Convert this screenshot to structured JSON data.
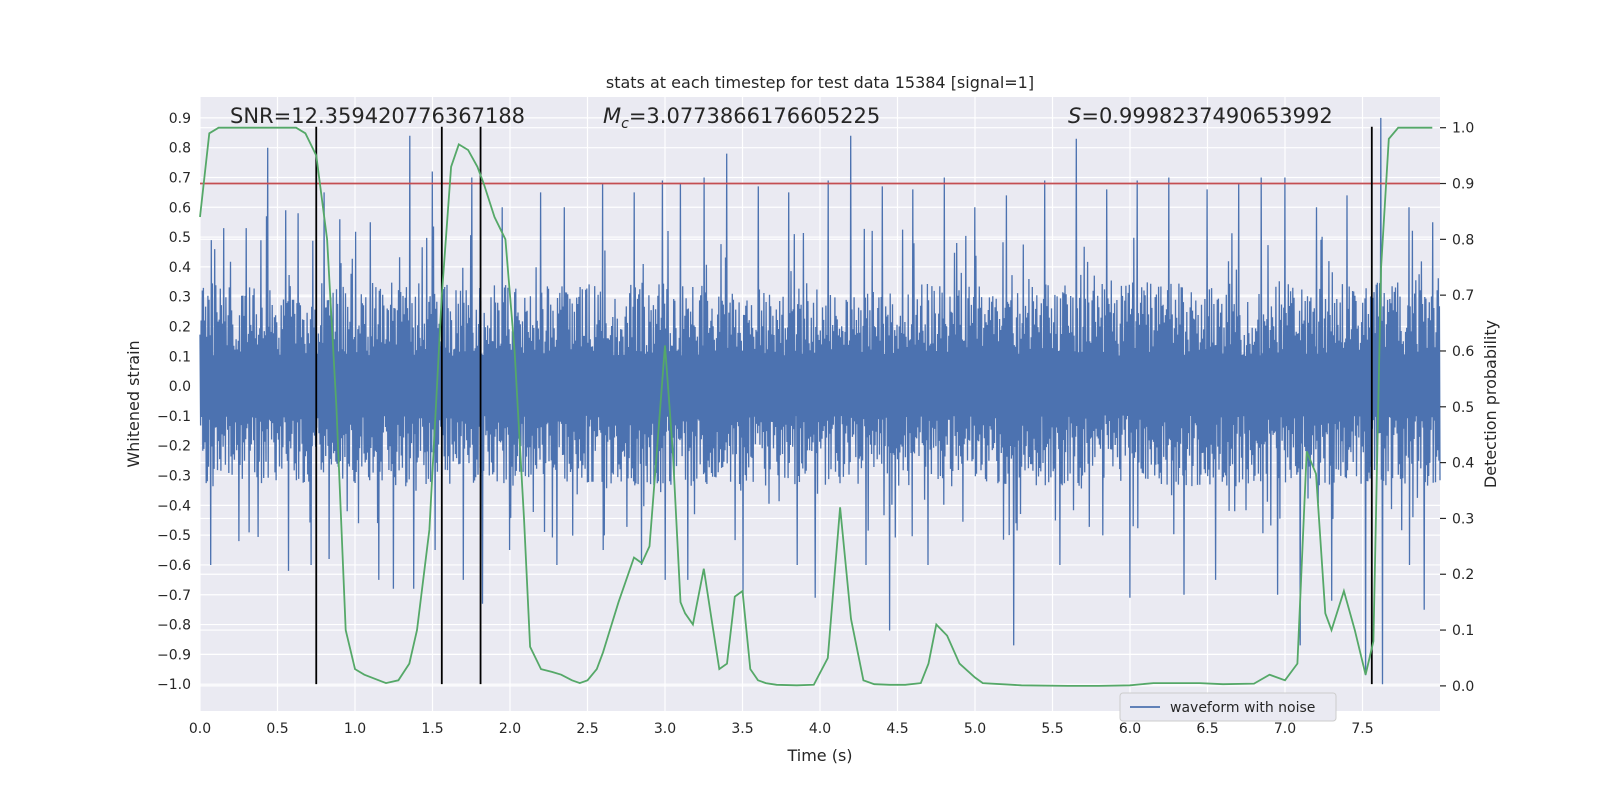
{
  "chart_data": {
    "type": "line",
    "title": "stats at each timestep for test data 15384 [signal=1]",
    "xlabel": "Time (s)",
    "ylabel": "Whitened strain",
    "y2label": "Detection probability",
    "xlim": [
      0.0,
      8.0
    ],
    "ylim": [
      -1.09,
      0.97
    ],
    "y2lim": [
      -0.045,
      1.055
    ],
    "xticks": [
      "0.0",
      "0.5",
      "1.0",
      "1.5",
      "2.0",
      "2.5",
      "3.0",
      "3.5",
      "4.0",
      "4.5",
      "5.0",
      "5.5",
      "6.0",
      "6.5",
      "7.0",
      "7.5"
    ],
    "yticks": [
      "0.9",
      "0.8",
      "0.7",
      "0.6",
      "0.5",
      "0.4",
      "0.3",
      "0.2",
      "0.1",
      "0.0",
      "-0.1",
      "-0.2",
      "-0.3",
      "-0.4",
      "-0.5",
      "-0.6",
      "-0.7",
      "-0.8",
      "-0.9",
      "-1.0"
    ],
    "y2ticks": [
      "1.0",
      "0.9",
      "0.8",
      "0.7",
      "0.6",
      "0.5",
      "0.4",
      "0.3",
      "0.2",
      "0.1",
      "0.0"
    ],
    "annotations": {
      "snr": "SNR=12.359420776367188",
      "mc_symbol": "M",
      "mc_sub": "c",
      "mc_value": "=3.0773866176605225",
      "s_symbol": "S",
      "s_value": "=0.9998237490653992"
    },
    "legend": {
      "label": "waveform with noise",
      "location": "lower-right"
    },
    "threshold": {
      "value": 0.9,
      "axis": "y2",
      "color": "#c44e52"
    },
    "vlines_x": [
      0.75,
      1.56,
      1.81,
      7.56
    ],
    "waveform": {
      "name": "waveform with noise",
      "color": "#4c72b0",
      "x_range": [
        0.0,
        8.0
      ],
      "base_envelope": [
        -0.28,
        0.29
      ],
      "peaks": [
        {
          "x": 0.07,
          "y": 0.49
        },
        {
          "x": 0.15,
          "y": 0.53
        },
        {
          "x": 0.3,
          "y": 0.53
        },
        {
          "x": 0.43,
          "y": 0.57
        },
        {
          "x": 0.44,
          "y": 0.8
        },
        {
          "x": 0.55,
          "y": 0.59
        },
        {
          "x": 0.63,
          "y": 0.58
        },
        {
          "x": 0.8,
          "y": 0.65
        },
        {
          "x": 0.9,
          "y": 0.56
        },
        {
          "x": 1.1,
          "y": 0.55
        },
        {
          "x": 1.35,
          "y": 0.84
        },
        {
          "x": 1.5,
          "y": 0.72
        },
        {
          "x": 1.75,
          "y": 0.7
        },
        {
          "x": 1.95,
          "y": 0.6
        },
        {
          "x": 2.2,
          "y": 0.65
        },
        {
          "x": 2.35,
          "y": 0.6
        },
        {
          "x": 2.6,
          "y": 0.68
        },
        {
          "x": 2.8,
          "y": 0.65
        },
        {
          "x": 2.98,
          "y": 0.69
        },
        {
          "x": 3.1,
          "y": 0.68
        },
        {
          "x": 3.25,
          "y": 0.7
        },
        {
          "x": 3.4,
          "y": 0.78
        },
        {
          "x": 3.6,
          "y": 0.67
        },
        {
          "x": 3.8,
          "y": 0.65
        },
        {
          "x": 4.05,
          "y": 0.69
        },
        {
          "x": 4.2,
          "y": 0.84
        },
        {
          "x": 4.4,
          "y": 0.67
        },
        {
          "x": 4.6,
          "y": 0.66
        },
        {
          "x": 4.8,
          "y": 0.7
        },
        {
          "x": 5.0,
          "y": 0.6
        },
        {
          "x": 5.2,
          "y": 0.64
        },
        {
          "x": 5.45,
          "y": 0.69
        },
        {
          "x": 5.65,
          "y": 0.83
        },
        {
          "x": 5.85,
          "y": 0.66
        },
        {
          "x": 6.05,
          "y": 0.69
        },
        {
          "x": 6.25,
          "y": 0.7
        },
        {
          "x": 6.5,
          "y": 0.66
        },
        {
          "x": 6.7,
          "y": 0.68
        },
        {
          "x": 6.85,
          "y": 0.7
        },
        {
          "x": 7.0,
          "y": 0.7
        },
        {
          "x": 7.2,
          "y": 0.6
        },
        {
          "x": 7.4,
          "y": 0.64
        },
        {
          "x": 7.62,
          "y": 0.9
        },
        {
          "x": 7.8,
          "y": 0.6
        },
        {
          "x": 7.95,
          "y": 0.55
        }
      ],
      "troughs": [
        {
          "x": 0.07,
          "y": -0.6
        },
        {
          "x": 0.25,
          "y": -0.52
        },
        {
          "x": 0.57,
          "y": -0.62
        },
        {
          "x": 0.72,
          "y": -0.6
        },
        {
          "x": 0.83,
          "y": -0.58
        },
        {
          "x": 1.15,
          "y": -0.65
        },
        {
          "x": 1.25,
          "y": -0.68
        },
        {
          "x": 1.38,
          "y": -0.68
        },
        {
          "x": 1.52,
          "y": -0.55
        },
        {
          "x": 1.7,
          "y": -0.65
        },
        {
          "x": 1.82,
          "y": -0.73
        },
        {
          "x": 2.0,
          "y": -0.55
        },
        {
          "x": 2.3,
          "y": -0.6
        },
        {
          "x": 2.6,
          "y": -0.55
        },
        {
          "x": 2.85,
          "y": -0.6
        },
        {
          "x": 3.0,
          "y": -0.65
        },
        {
          "x": 3.15,
          "y": -0.65
        },
        {
          "x": 3.5,
          "y": -0.7
        },
        {
          "x": 3.85,
          "y": -0.6
        },
        {
          "x": 3.97,
          "y": -0.71
        },
        {
          "x": 4.3,
          "y": -0.6
        },
        {
          "x": 4.45,
          "y": -0.82
        },
        {
          "x": 4.7,
          "y": -0.6
        },
        {
          "x": 5.25,
          "y": -0.87
        },
        {
          "x": 5.55,
          "y": -0.6
        },
        {
          "x": 6.0,
          "y": -0.71
        },
        {
          "x": 6.35,
          "y": -0.7
        },
        {
          "x": 6.55,
          "y": -0.65
        },
        {
          "x": 6.95,
          "y": -0.7
        },
        {
          "x": 7.1,
          "y": -0.87
        },
        {
          "x": 7.3,
          "y": -0.72
        },
        {
          "x": 7.52,
          "y": -0.97
        },
        {
          "x": 7.63,
          "y": -1.0
        },
        {
          "x": 7.8,
          "y": -0.6
        },
        {
          "x": 7.9,
          "y": -0.75
        }
      ]
    },
    "probability": {
      "name": "Detection probability",
      "color": "#55a868",
      "axis": "y2",
      "x": [
        0.0,
        0.06,
        0.12,
        0.25,
        0.5,
        0.62,
        0.68,
        0.75,
        0.82,
        0.88,
        0.94,
        1.0,
        1.06,
        1.2,
        1.28,
        1.35,
        1.4,
        1.48,
        1.56,
        1.62,
        1.67,
        1.73,
        1.79,
        1.83,
        1.9,
        1.97,
        2.03,
        2.09,
        2.13,
        2.2,
        2.27,
        2.33,
        2.4,
        2.45,
        2.5,
        2.56,
        2.6,
        2.7,
        2.8,
        2.85,
        2.9,
        2.95,
        3.0,
        3.05,
        3.1,
        3.13,
        3.18,
        3.25,
        3.3,
        3.35,
        3.4,
        3.45,
        3.5,
        3.55,
        3.6,
        3.65,
        3.72,
        3.85,
        3.96,
        4.05,
        4.13,
        4.2,
        4.28,
        4.35,
        4.45,
        4.55,
        4.65,
        4.7,
        4.75,
        4.82,
        4.9,
        5.0,
        5.05,
        5.3,
        5.6,
        5.8,
        6.0,
        6.15,
        6.3,
        6.45,
        6.6,
        6.8,
        6.9,
        7.0,
        7.08,
        7.14,
        7.2,
        7.26,
        7.3,
        7.38,
        7.45,
        7.52,
        7.57,
        7.62,
        7.67,
        7.73,
        7.85,
        7.95
      ],
      "y": [
        0.84,
        0.99,
        1.0,
        1.0,
        1.0,
        1.0,
        0.99,
        0.95,
        0.8,
        0.5,
        0.1,
        0.03,
        0.02,
        0.005,
        0.01,
        0.04,
        0.1,
        0.28,
        0.7,
        0.93,
        0.97,
        0.96,
        0.93,
        0.9,
        0.84,
        0.8,
        0.6,
        0.3,
        0.07,
        0.03,
        0.025,
        0.02,
        0.01,
        0.005,
        0.01,
        0.03,
        0.06,
        0.15,
        0.23,
        0.22,
        0.25,
        0.43,
        0.61,
        0.42,
        0.15,
        0.13,
        0.11,
        0.21,
        0.12,
        0.03,
        0.04,
        0.16,
        0.17,
        0.03,
        0.01,
        0.005,
        0.002,
        0.001,
        0.002,
        0.05,
        0.32,
        0.12,
        0.01,
        0.003,
        0.002,
        0.002,
        0.005,
        0.04,
        0.11,
        0.09,
        0.04,
        0.015,
        0.005,
        0.001,
        0.0,
        0.0,
        0.001,
        0.005,
        0.005,
        0.005,
        0.003,
        0.004,
        0.02,
        0.01,
        0.04,
        0.42,
        0.38,
        0.13,
        0.1,
        0.17,
        0.1,
        0.02,
        0.08,
        0.75,
        0.98,
        1.0,
        1.0,
        1.0
      ]
    }
  }
}
